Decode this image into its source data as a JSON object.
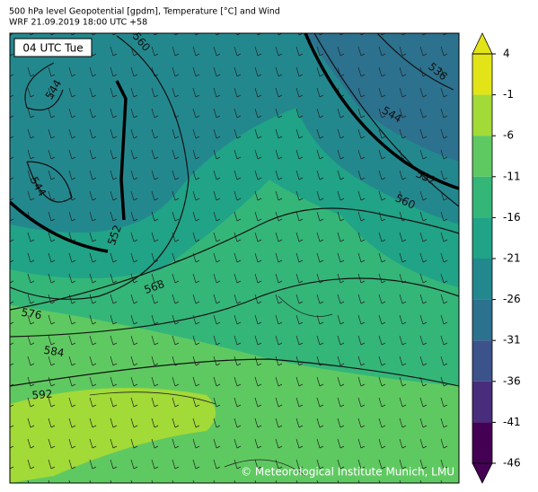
{
  "header": {
    "title_lines": [
      "500 hPa level Geopotential [gpdm], Temperature [°C] and Wind",
      "WRF 21.09.2019 18:00 UTC +58"
    ]
  },
  "map": {
    "time_label": "04 UTC Tue",
    "contour_labels": [
      560,
      544,
      544,
      552,
      568,
      576,
      584,
      592,
      536,
      544,
      552,
      560
    ],
    "credit": "© Meteorological Institute Munich, LMU"
  },
  "colorbar": {
    "ticks": [
      4,
      -1,
      -6,
      -11,
      -16,
      -21,
      -26,
      -31,
      -36,
      -41,
      -46
    ],
    "colors": [
      "#e3e418",
      "#a2da37",
      "#5fc961",
      "#34b679",
      "#20a386",
      "#23888e",
      "#2c718e",
      "#3b528b",
      "#472d7b",
      "#440154"
    ]
  }
}
